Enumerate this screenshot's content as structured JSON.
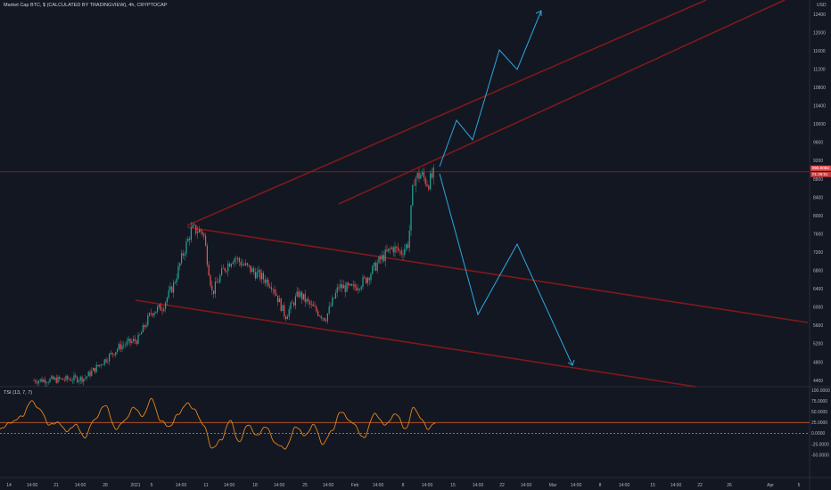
{
  "header": {
    "title": "Market Cap BTC, $ (CALCULATED BY TRADINGVIEW), 4h, CRYPTOCAP",
    "currency": "USD"
  },
  "indicator": {
    "label": "TSI (13, 7, 7)"
  },
  "price_tags": {
    "last": "895.80Bn",
    "countdown": "01:36:51"
  },
  "colors": {
    "background": "#131722",
    "up_candle": "#26a69a",
    "down_candle": "#ef5350",
    "trendline": "#8b1a1a",
    "projection": "#2aa8e0",
    "tsi_line": "#e8841a",
    "tsi_signal": "#ff6a2a"
  },
  "chart_data": {
    "type": "line",
    "price_axis": {
      "ticks": [
        "12400",
        "12000",
        "11600",
        "11200",
        "10800",
        "10400",
        "10000",
        "9600",
        "9200",
        "8800",
        "8400",
        "8000",
        "7600",
        "7200",
        "6800",
        "6400",
        "6000",
        "5600",
        "5200",
        "4800",
        "4400"
      ]
    },
    "tsi_axis": {
      "ticks": [
        "100.0000",
        "75.0000",
        "50.0000",
        "25.0000",
        "0.0000",
        "-25.0000",
        "-50.0000"
      ],
      "levels": [
        25,
        0
      ]
    },
    "time_axis": {
      "ticks": [
        "14",
        "14:00",
        "21",
        "14:00",
        "28",
        "2021",
        "5",
        "14:00",
        "11",
        "14:00",
        "18",
        "14:00",
        "25",
        "14:00",
        "Feb",
        "14:00",
        "8",
        "14:00",
        "15",
        "14:00",
        "22",
        "14:00",
        "Mar",
        "14:00",
        "8",
        "14:00",
        "15",
        "14:00",
        "22",
        "26",
        "Apr",
        "5"
      ]
    },
    "last_price": 8958,
    "tsi": {
      "series_first_value": 10,
      "series_last_value": 25
    }
  }
}
